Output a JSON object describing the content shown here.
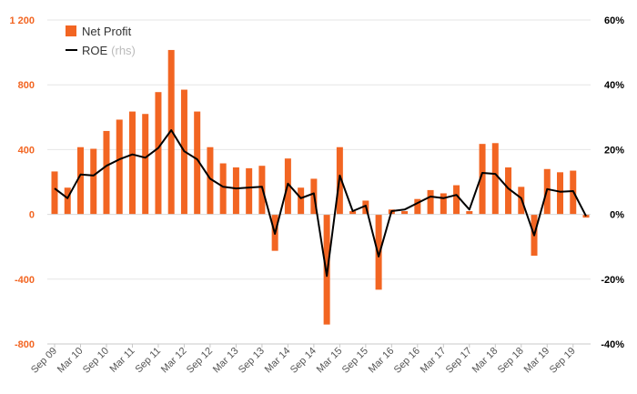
{
  "chart_data": {
    "type": "bar",
    "categories": [
      "Sep 09",
      "Dec 09",
      "Mar 10",
      "Jun 10",
      "Sep 10",
      "Dec 10",
      "Mar 11",
      "Jun 11",
      "Sep 11",
      "Dec 11",
      "Mar 12",
      "Jun 12",
      "Sep 12",
      "Dec 12",
      "Mar 13",
      "Jun 13",
      "Sep 13",
      "Dec 13",
      "Mar 14",
      "Jun 14",
      "Sep 14",
      "Dec 14",
      "Mar 15",
      "Jun 15",
      "Sep 15",
      "Dec 15",
      "Mar 16",
      "Jun 16",
      "Sep 16",
      "Dec 16",
      "Mar 17",
      "Jun 17",
      "Sep 17",
      "Dec 17",
      "Mar 18",
      "Jun 18",
      "Sep 18",
      "Dec 18",
      "Mar 19",
      "Jun 19",
      "Sep 19",
      "Dec 19"
    ],
    "tick_labels": [
      "Sep 09",
      "Mar 10",
      "Sep 10",
      "Mar 11",
      "Sep 11",
      "Mar 12",
      "Sep 12",
      "Mar 13",
      "Sep 13",
      "Mar 14",
      "Sep 14",
      "Mar 15",
      "Sep 15",
      "Mar 16",
      "Sep 16",
      "Mar 17",
      "Sep 17",
      "Mar 18",
      "Sep 18",
      "Mar 19",
      "Sep 19"
    ],
    "series": [
      {
        "name": "Net Profit",
        "type": "bar",
        "axis": "left",
        "color": "#f26522",
        "values": [
          265,
          165,
          415,
          405,
          515,
          585,
          635,
          620,
          755,
          1015,
          770,
          635,
          415,
          315,
          290,
          285,
          300,
          -225,
          345,
          165,
          220,
          -680,
          415,
          20,
          85,
          -465,
          30,
          20,
          95,
          150,
          130,
          180,
          20,
          435,
          440,
          290,
          170,
          -255,
          280,
          260,
          270,
          -20
        ]
      },
      {
        "name": "ROE",
        "name_suffix": "(rhs)",
        "type": "line",
        "axis": "right",
        "color": "#000000",
        "values": [
          8,
          5,
          12.3,
          12,
          15,
          17,
          18.5,
          17.5,
          20.5,
          26,
          19.5,
          17,
          11,
          8.5,
          8,
          8.3,
          8.5,
          -6,
          9.5,
          5,
          6.5,
          -19,
          12,
          1,
          2.7,
          -13,
          1,
          1.5,
          3.5,
          5.5,
          5,
          6,
          1.5,
          12.8,
          12.5,
          8,
          5,
          -6.5,
          7.8,
          7,
          7.2,
          -0.5
        ]
      }
    ],
    "y_left": {
      "ticks": [
        1200,
        800,
        400,
        0,
        -400,
        -800
      ],
      "tick_labels": [
        "1 200",
        "800",
        "400",
        "0",
        "-400",
        "-800"
      ],
      "ylim": [
        -800,
        1200
      ],
      "color": "#f26522"
    },
    "y_right": {
      "ticks": [
        60,
        40,
        20,
        0,
        -20,
        -40
      ],
      "tick_labels": [
        "60%",
        "40%",
        "20%",
        "0%",
        "-20%",
        "-40%"
      ],
      "ylim": [
        -40,
        60
      ]
    },
    "grid": true,
    "legend_position": "top-left",
    "title": "",
    "xlabel": "",
    "ylabel": ""
  }
}
